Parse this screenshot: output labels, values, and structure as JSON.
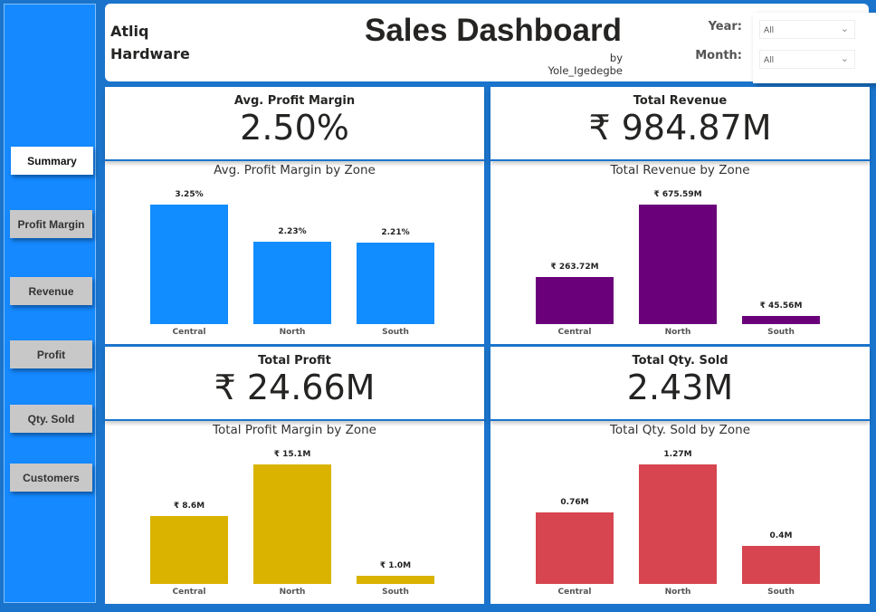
{
  "sidebar": {
    "items": [
      {
        "label": "Summary",
        "active": true
      },
      {
        "label": "Profit Margin"
      },
      {
        "label": "Revenue"
      },
      {
        "label": "Profit"
      },
      {
        "label": "Qty. Sold"
      },
      {
        "label": "Customers"
      }
    ]
  },
  "header": {
    "brand_line1": "Atliq",
    "brand_line2": "Hardware",
    "title": "Sales Dashboard",
    "by": "by",
    "author": "Yole_Igedegbe"
  },
  "filters": {
    "year_label": "Year:",
    "year_value": "All",
    "month_label": "Month:",
    "month_value": "All"
  },
  "panels": [
    {
      "kpi_label": "Avg. Profit Margin",
      "kpi_value": "2.50%",
      "chart_title": "Avg. Profit Margin by Zone",
      "color": "#118dff",
      "max": 3.25,
      "categories": [
        "Central",
        "North",
        "South"
      ],
      "values": [
        3.25,
        2.23,
        2.21
      ],
      "labels": [
        "3.25%",
        "2.23%",
        "2.21%"
      ]
    },
    {
      "kpi_label": "Total Revenue",
      "kpi_value": "₹ 984.87M",
      "chart_title": "Total Revenue by Zone",
      "color": "#6b007b",
      "max": 675.59,
      "categories": [
        "Central",
        "North",
        "South"
      ],
      "values": [
        263.72,
        675.59,
        45.56
      ],
      "labels": [
        "₹ 263.72M",
        "₹ 675.59M",
        "₹ 45.56M"
      ]
    },
    {
      "kpi_label": "Total Profit",
      "kpi_value": "₹ 24.66M",
      "chart_title": "Total Profit Margin by Zone",
      "color": "#d9b300",
      "max": 15.1,
      "categories": [
        "Central",
        "North",
        "South"
      ],
      "values": [
        8.6,
        15.1,
        1.0
      ],
      "labels": [
        "₹ 8.6M",
        "₹ 15.1M",
        "₹ 1.0M"
      ]
    },
    {
      "kpi_label": "Total Qty. Sold",
      "kpi_value": "2.43M",
      "chart_title": "Total Qty. Sold by Zone",
      "color": "#d64550",
      "max": 1.27,
      "categories": [
        "Central",
        "North",
        "South"
      ],
      "values": [
        0.76,
        1.27,
        0.4
      ],
      "labels": [
        "0.76M",
        "1.27M",
        "0.4M"
      ]
    }
  ]
}
